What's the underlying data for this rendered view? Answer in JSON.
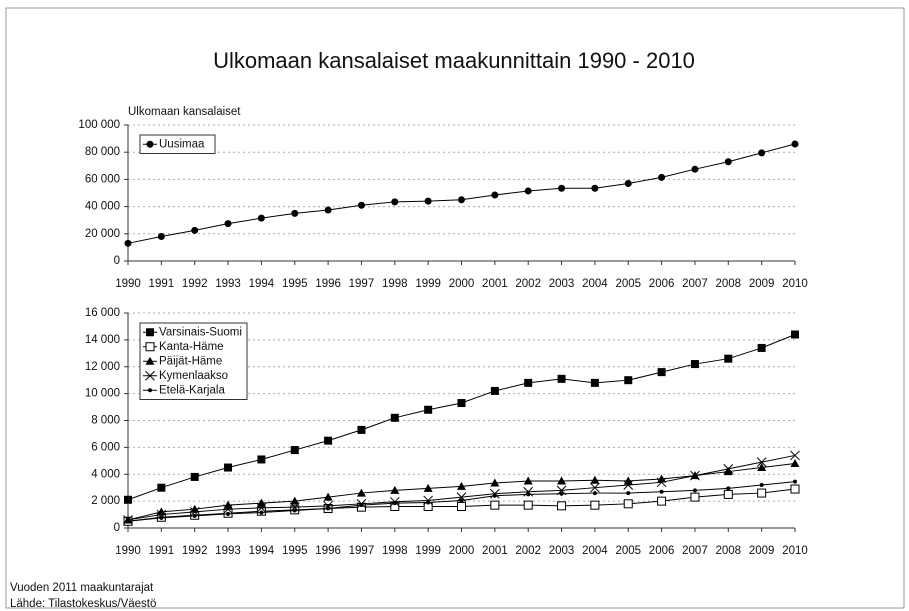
{
  "title": "Ulkomaan kansalaiset maakunnittain 1990 - 2010",
  "footnotes": [
    "Vuoden 2011 maakuntarajat",
    "Lähde: Tilastokeskus/Väestö"
  ],
  "chart_data": [
    {
      "type": "line",
      "ylabel": "Ulkomaan kansalaiset",
      "grid": true,
      "legend": "upper left",
      "categories": [
        "1990",
        "1991",
        "1992",
        "1993",
        "1994",
        "1995",
        "1996",
        "1997",
        "1998",
        "1999",
        "2000",
        "2001",
        "2002",
        "2003",
        "2004",
        "2005",
        "2006",
        "2007",
        "2008",
        "2009",
        "2010"
      ],
      "ylim": [
        0,
        100000
      ],
      "yticks": [
        0,
        {
          "value": 20000,
          "label": "20 000"
        },
        {
          "value": 40000,
          "label": "40 000"
        },
        {
          "value": 60000,
          "label": "60 000"
        },
        {
          "value": 80000,
          "label": "80 000"
        },
        {
          "value": 100000,
          "label": "100 000"
        }
      ],
      "series": [
        {
          "name": "Uusimaa",
          "color": "#000000",
          "marker": "circle",
          "values": [
            13000,
            18000,
            22500,
            27500,
            31500,
            35000,
            37500,
            41000,
            43500,
            44000,
            45000,
            48500,
            51500,
            53500,
            53500,
            57000,
            61500,
            67500,
            73000,
            79500,
            86000
          ]
        }
      ]
    },
    {
      "type": "line",
      "grid": true,
      "legend": "upper left",
      "categories": [
        "1990",
        "1991",
        "1992",
        "1993",
        "1994",
        "1995",
        "1996",
        "1997",
        "1998",
        "1999",
        "2000",
        "2001",
        "2002",
        "2003",
        "2004",
        "2005",
        "2006",
        "2007",
        "2008",
        "2009",
        "2010"
      ],
      "ylim": [
        0,
        16000
      ],
      "yticks": [
        0,
        {
          "value": 2000,
          "label": "2 000"
        },
        {
          "value": 4000,
          "label": "4 000"
        },
        {
          "value": 6000,
          "label": "6 000"
        },
        {
          "value": 8000,
          "label": "8 000"
        },
        {
          "value": 10000,
          "label": "10 000"
        },
        {
          "value": 12000,
          "label": "12 000"
        },
        {
          "value": 14000,
          "label": "14 000"
        },
        {
          "value": 16000,
          "label": "16 000"
        }
      ],
      "series": [
        {
          "name": "Varsinais-Suomi",
          "color": "#000000",
          "marker": "square",
          "values": [
            2100,
            3000,
            3800,
            4500,
            5100,
            5800,
            6500,
            7300,
            8200,
            8800,
            9300,
            10200,
            10800,
            11100,
            10800,
            11000,
            11600,
            12200,
            12600,
            13400,
            14400
          ]
        },
        {
          "name": "Kanta-Häme",
          "color": "#000000",
          "marker": "square-open",
          "values": [
            500,
            800,
            950,
            1100,
            1250,
            1350,
            1450,
            1550,
            1600,
            1600,
            1600,
            1700,
            1700,
            1650,
            1700,
            1800,
            2000,
            2300,
            2500,
            2600,
            2900
          ]
        },
        {
          "name": "Päijät-Häme",
          "color": "#000000",
          "marker": "triangle",
          "values": [
            600,
            1200,
            1400,
            1700,
            1850,
            2000,
            2300,
            2600,
            2800,
            2950,
            3100,
            3350,
            3500,
            3500,
            3550,
            3500,
            3650,
            3900,
            4200,
            4500,
            4800
          ]
        },
        {
          "name": "Kymenlaakso",
          "color": "#000000",
          "marker": "x",
          "values": [
            600,
            1000,
            1200,
            1400,
            1500,
            1550,
            1650,
            1800,
            1950,
            2050,
            2300,
            2550,
            2700,
            2800,
            3000,
            3200,
            3400,
            3900,
            4400,
            4900,
            5400
          ]
        },
        {
          "name": "Etelä-Karjala",
          "color": "#000000",
          "marker": "dot",
          "values": [
            500,
            750,
            900,
            1050,
            1150,
            1300,
            1450,
            1700,
            1850,
            1900,
            2050,
            2400,
            2500,
            2550,
            2600,
            2600,
            2700,
            2800,
            2950,
            3200,
            3450
          ]
        }
      ]
    }
  ]
}
